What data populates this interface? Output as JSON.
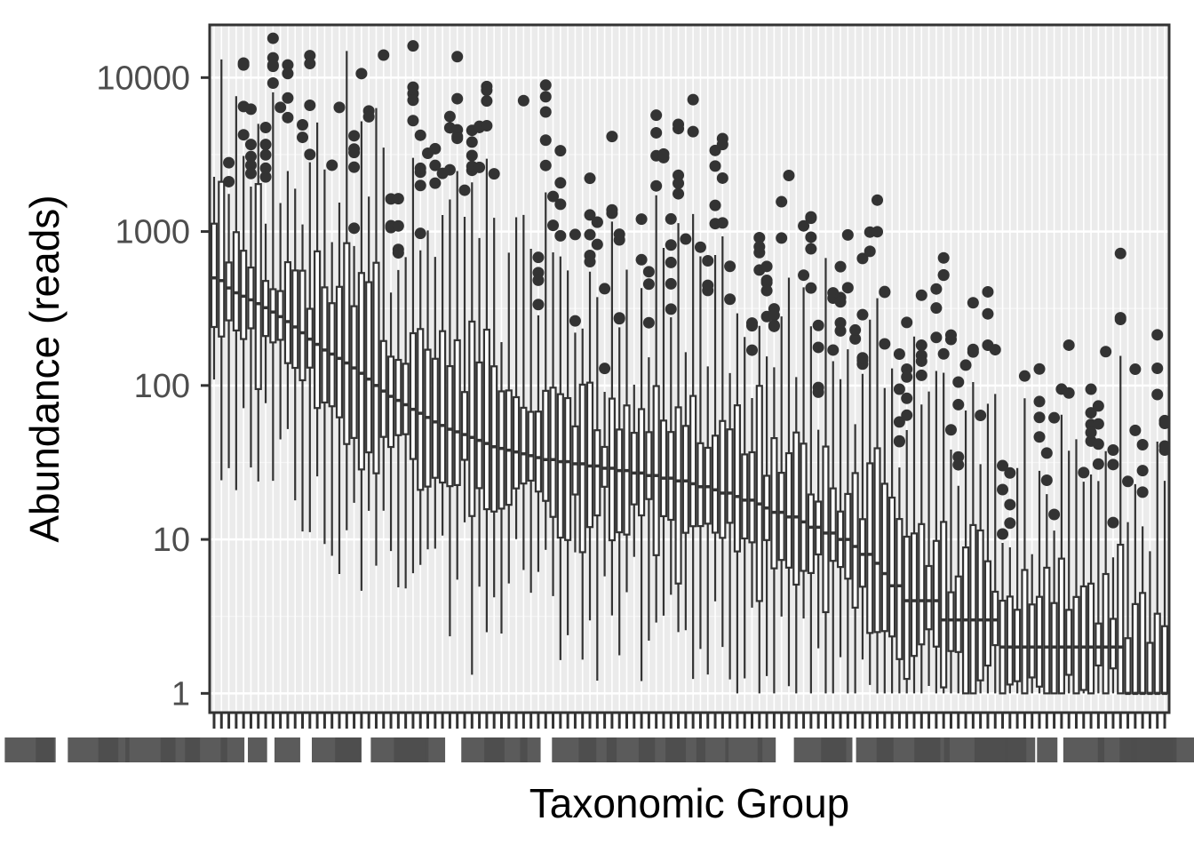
{
  "chart_data": {
    "type": "box",
    "xlabel": "Taxonomic Group",
    "ylabel": "Abundance (reads)",
    "yscale": "log10",
    "ylim": [
      0.75,
      22000
    ],
    "yticks": [
      1,
      10,
      100,
      1000,
      10000
    ],
    "ytick_labels": [
      "1",
      "10",
      "100",
      "1000",
      "10000"
    ],
    "grid": true,
    "legend": "none",
    "category_count": 130,
    "x_tick_labels_legible": false,
    "colors": {
      "panel": "#ebebeb",
      "grid_major": "#ffffff",
      "grid_minor": "#f5f5f5",
      "box": "#333333",
      "frame": "#333333",
      "tick_label": "#4d4d4d"
    },
    "medians_approx": [
      500,
      480,
      430,
      400,
      380,
      360,
      340,
      320,
      300,
      280,
      260,
      240,
      220,
      200,
      185,
      170,
      160,
      150,
      140,
      130,
      120,
      110,
      100,
      92,
      85,
      80,
      75,
      70,
      66,
      62,
      58,
      55,
      52,
      50,
      48,
      46,
      44,
      42,
      40,
      39,
      38,
      37,
      36,
      35,
      34,
      33,
      33,
      32,
      32,
      31,
      31,
      30,
      30,
      29,
      29,
      28,
      28,
      27,
      27,
      26,
      26,
      25,
      25,
      24,
      24,
      23,
      22,
      22,
      21,
      20,
      20,
      19,
      18,
      18,
      17,
      16,
      15,
      15,
      14,
      14,
      13,
      12,
      12,
      11,
      11,
      10,
      10,
      9,
      8,
      8,
      7,
      6,
      5,
      5,
      4,
      4,
      4,
      4,
      4,
      3,
      3,
      3,
      3,
      3,
      3,
      3,
      3,
      2,
      2,
      2,
      2,
      2,
      2,
      2,
      2,
      2,
      2,
      2,
      2,
      2,
      2,
      2,
      2,
      2,
      1,
      1,
      1,
      1,
      1,
      1
    ]
  }
}
